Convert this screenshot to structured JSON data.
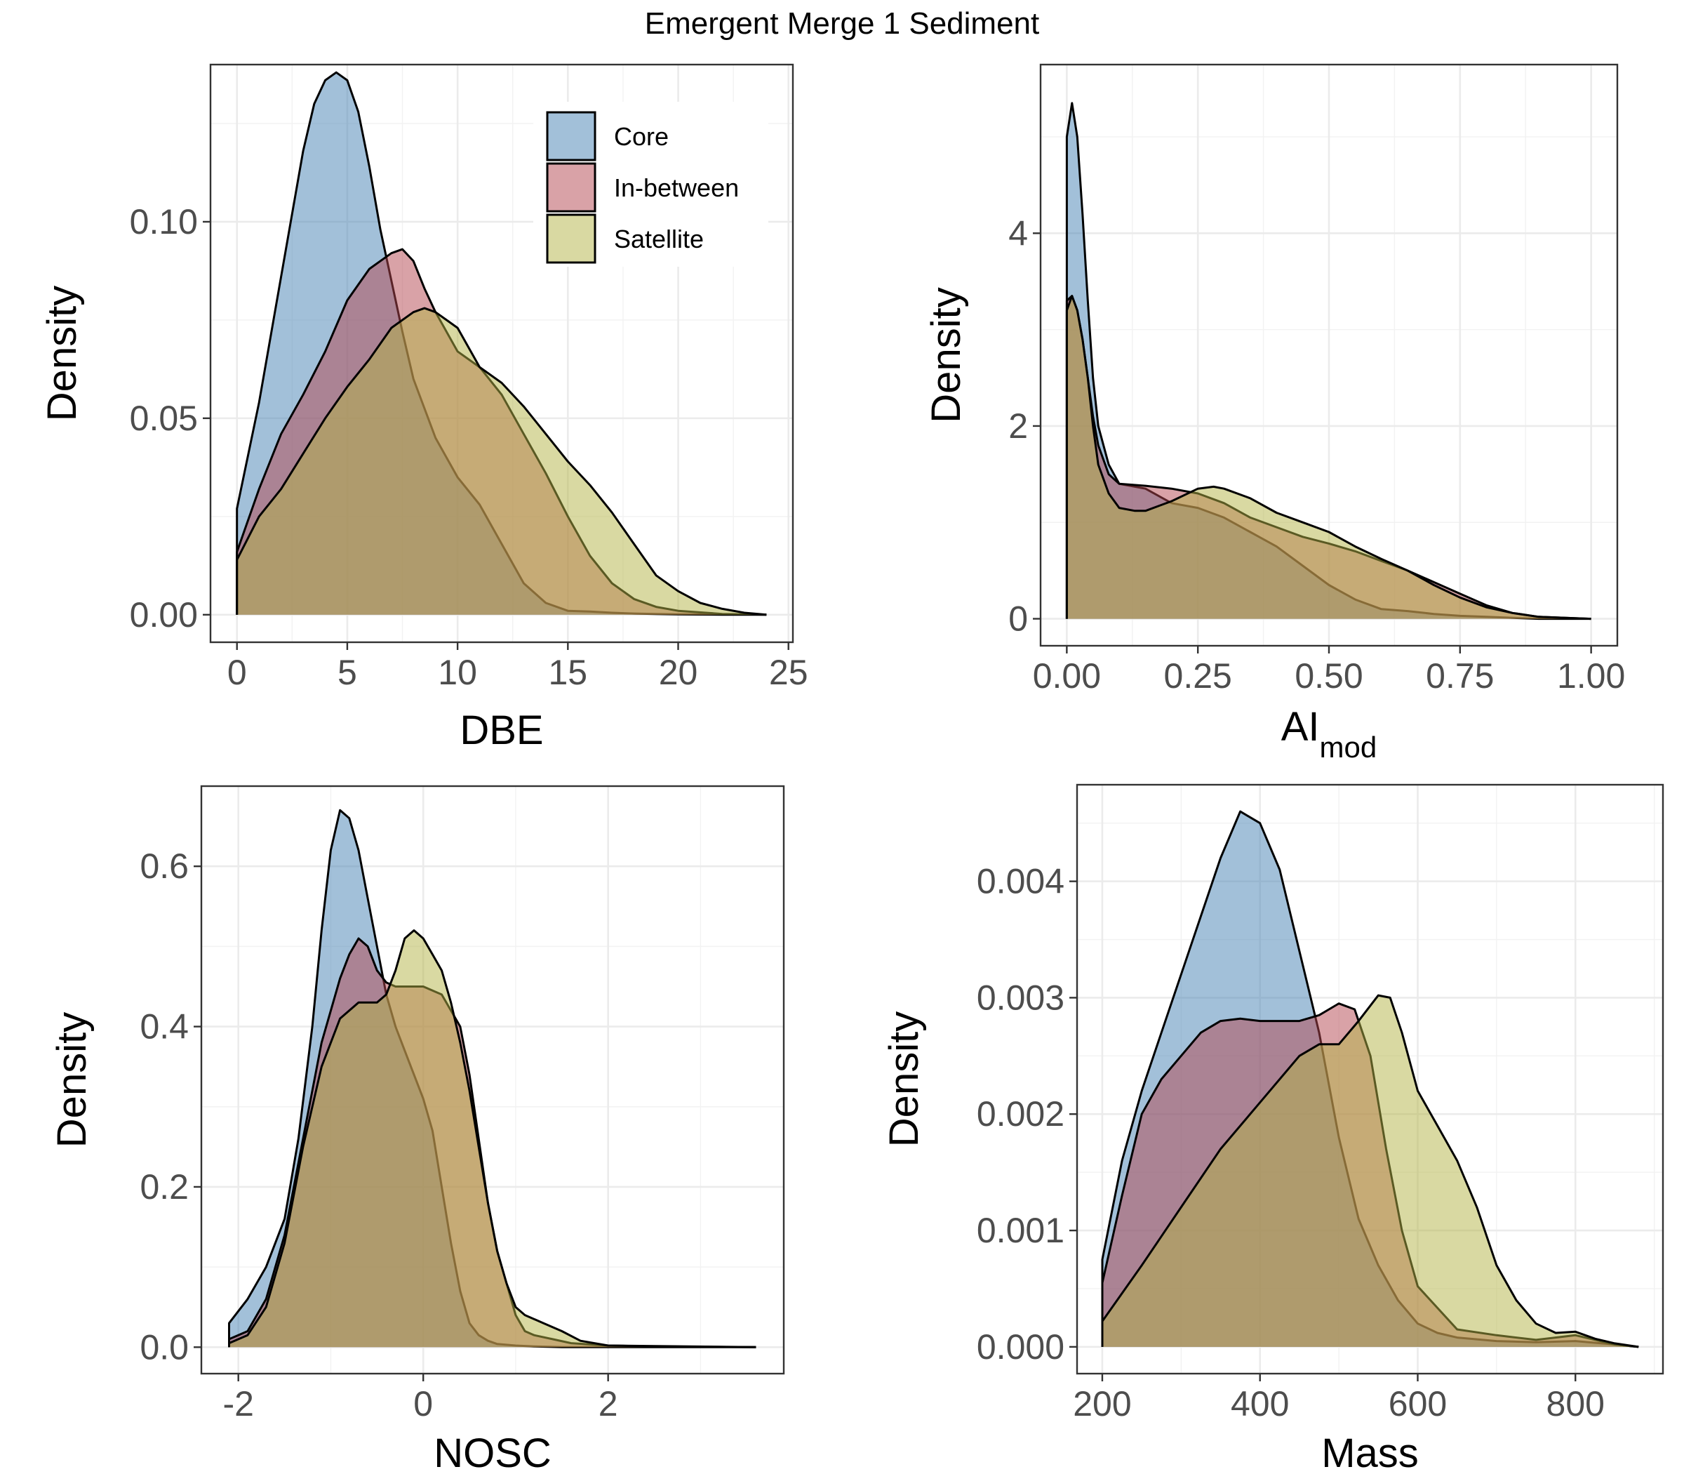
{
  "title": "Emergent Merge 1 Sediment",
  "colors": {
    "Core": "#4682b4",
    "In-between": "#b44650",
    "Satellite": "#b4b446"
  },
  "legend": {
    "placement": "top-right inside first panel",
    "entries": [
      "Core",
      "In-between",
      "Satellite"
    ]
  },
  "chart_data": [
    {
      "type": "area",
      "id": "dbe",
      "xlabel": "DBE",
      "ylabel": "Density",
      "xlim": [
        -1.2,
        25.2
      ],
      "ylim": [
        -0.007,
        0.14
      ],
      "xticks": [
        0,
        5,
        10,
        15,
        20,
        25
      ],
      "xtick_labels": [
        "0",
        "5",
        "10",
        "15",
        "20",
        "25"
      ],
      "yticks": [
        0.0,
        0.05,
        0.1
      ],
      "ytick_labels": [
        "0.00",
        "0.05",
        "0.10"
      ],
      "grid": true,
      "series": [
        {
          "name": "Core",
          "x": [
            0,
            1,
            2,
            3,
            3.5,
            4,
            4.5,
            5,
            5.5,
            6,
            6.5,
            7,
            7.5,
            8,
            9,
            10,
            11,
            12,
            13,
            14,
            15,
            16,
            17,
            18,
            19,
            20,
            22,
            24
          ],
          "y": [
            0.027,
            0.054,
            0.086,
            0.118,
            0.13,
            0.136,
            0.138,
            0.136,
            0.128,
            0.114,
            0.098,
            0.085,
            0.072,
            0.06,
            0.045,
            0.035,
            0.028,
            0.018,
            0.008,
            0.003,
            0.001,
            0.0008,
            0.0005,
            0.0003,
            0.0002,
            0.0001,
            0.0,
            0.0
          ]
        },
        {
          "name": "In-between",
          "x": [
            0,
            1,
            2,
            3,
            4,
            5,
            6,
            7,
            7.5,
            8,
            8.5,
            9,
            10,
            11,
            12,
            13,
            14,
            15,
            16,
            17,
            18,
            19,
            20,
            22,
            24
          ],
          "y": [
            0.016,
            0.032,
            0.046,
            0.056,
            0.067,
            0.08,
            0.088,
            0.092,
            0.093,
            0.09,
            0.083,
            0.077,
            0.067,
            0.063,
            0.056,
            0.046,
            0.036,
            0.025,
            0.015,
            0.008,
            0.004,
            0.002,
            0.001,
            0.0002,
            0.0
          ]
        },
        {
          "name": "Satellite",
          "x": [
            0,
            1,
            2,
            3,
            4,
            5,
            6,
            7,
            8,
            8.5,
            9,
            10,
            11,
            12,
            13,
            14,
            15,
            16,
            17,
            18,
            19,
            20,
            21,
            22,
            23,
            24
          ],
          "y": [
            0.014,
            0.025,
            0.032,
            0.041,
            0.05,
            0.058,
            0.065,
            0.073,
            0.077,
            0.078,
            0.077,
            0.073,
            0.063,
            0.059,
            0.053,
            0.046,
            0.039,
            0.033,
            0.026,
            0.018,
            0.01,
            0.006,
            0.003,
            0.0015,
            0.0005,
            0.0
          ]
        }
      ]
    },
    {
      "type": "area",
      "id": "aimod",
      "xlabel": "AI",
      "xlabel_sub": "mod",
      "ylabel": "Density",
      "xlim": [
        -0.05,
        1.05
      ],
      "ylim": [
        -0.28,
        5.75
      ],
      "xticks": [
        0,
        0.25,
        0.5,
        0.75,
        1.0
      ],
      "xtick_labels": [
        "0.00",
        "0.25",
        "0.50",
        "0.75",
        "1.00"
      ],
      "yticks": [
        0,
        2,
        4
      ],
      "ytick_labels": [
        "0",
        "2",
        "4"
      ],
      "grid": true,
      "series": [
        {
          "name": "Core",
          "x": [
            0,
            0.01,
            0.02,
            0.03,
            0.04,
            0.05,
            0.06,
            0.08,
            0.1,
            0.15,
            0.2,
            0.25,
            0.3,
            0.35,
            0.4,
            0.45,
            0.5,
            0.55,
            0.6,
            0.65,
            0.7,
            0.75,
            0.8,
            0.9,
            1.0
          ],
          "y": [
            5.0,
            5.35,
            5.0,
            4.2,
            3.3,
            2.5,
            2.0,
            1.6,
            1.4,
            1.35,
            1.2,
            1.15,
            1.05,
            0.9,
            0.75,
            0.55,
            0.35,
            0.2,
            0.1,
            0.08,
            0.05,
            0.03,
            0.02,
            0.0,
            0.0
          ]
        },
        {
          "name": "In-between",
          "x": [
            0,
            0.01,
            0.02,
            0.03,
            0.04,
            0.05,
            0.06,
            0.08,
            0.1,
            0.15,
            0.2,
            0.25,
            0.3,
            0.35,
            0.4,
            0.45,
            0.5,
            0.55,
            0.6,
            0.65,
            0.7,
            0.75,
            0.8,
            0.85,
            0.9,
            1.0
          ],
          "y": [
            3.3,
            3.35,
            3.2,
            2.9,
            2.5,
            2.1,
            1.8,
            1.5,
            1.4,
            1.38,
            1.35,
            1.3,
            1.2,
            1.05,
            0.95,
            0.85,
            0.78,
            0.7,
            0.6,
            0.5,
            0.38,
            0.26,
            0.14,
            0.06,
            0.02,
            0.0
          ]
        },
        {
          "name": "Satellite",
          "x": [
            0,
            0.01,
            0.02,
            0.03,
            0.04,
            0.05,
            0.06,
            0.08,
            0.1,
            0.13,
            0.15,
            0.2,
            0.25,
            0.28,
            0.3,
            0.35,
            0.4,
            0.45,
            0.5,
            0.55,
            0.6,
            0.65,
            0.7,
            0.75,
            0.8,
            0.85,
            0.9,
            0.95,
            1.0
          ],
          "y": [
            3.2,
            3.35,
            3.2,
            2.9,
            2.5,
            2.0,
            1.6,
            1.3,
            1.15,
            1.12,
            1.12,
            1.22,
            1.35,
            1.37,
            1.35,
            1.25,
            1.1,
            1.0,
            0.9,
            0.75,
            0.62,
            0.5,
            0.35,
            0.22,
            0.12,
            0.06,
            0.02,
            0.01,
            0.0
          ]
        }
      ]
    },
    {
      "type": "area",
      "id": "nosc",
      "xlabel": "NOSC",
      "ylabel": "Density",
      "xlim": [
        -2.4,
        3.9
      ],
      "ylim": [
        -0.033,
        0.7
      ],
      "xticks": [
        -2,
        0,
        2
      ],
      "xtick_labels": [
        "-2",
        "0",
        "2"
      ],
      "yticks": [
        0,
        0.2,
        0.4,
        0.6
      ],
      "ytick_labels": [
        "0.0",
        "0.2",
        "0.4",
        "0.6"
      ],
      "grid": true,
      "series": [
        {
          "name": "Core",
          "x": [
            -2.1,
            -1.9,
            -1.7,
            -1.5,
            -1.35,
            -1.2,
            -1.1,
            -1.0,
            -0.9,
            -0.8,
            -0.7,
            -0.6,
            -0.5,
            -0.4,
            -0.3,
            -0.2,
            -0.1,
            0.0,
            0.1,
            0.2,
            0.3,
            0.4,
            0.5,
            0.6,
            0.7,
            0.8,
            1.0,
            1.2,
            1.5,
            2.0,
            3.6
          ],
          "y": [
            0.03,
            0.06,
            0.1,
            0.16,
            0.26,
            0.4,
            0.52,
            0.62,
            0.67,
            0.66,
            0.62,
            0.56,
            0.5,
            0.44,
            0.4,
            0.37,
            0.34,
            0.31,
            0.27,
            0.2,
            0.13,
            0.07,
            0.03,
            0.015,
            0.008,
            0.004,
            0.002,
            0.001,
            0.0,
            0.0,
            0.0
          ]
        },
        {
          "name": "In-between",
          "x": [
            -2.1,
            -1.9,
            -1.7,
            -1.5,
            -1.3,
            -1.1,
            -0.9,
            -0.8,
            -0.7,
            -0.6,
            -0.5,
            -0.4,
            -0.3,
            -0.2,
            -0.1,
            0.0,
            0.2,
            0.4,
            0.5,
            0.6,
            0.7,
            0.8,
            0.9,
            1.0,
            1.1,
            1.2,
            1.4,
            1.6,
            2.0,
            3.6
          ],
          "y": [
            0.01,
            0.02,
            0.06,
            0.14,
            0.26,
            0.38,
            0.46,
            0.49,
            0.51,
            0.5,
            0.47,
            0.455,
            0.45,
            0.45,
            0.45,
            0.45,
            0.44,
            0.4,
            0.34,
            0.26,
            0.18,
            0.12,
            0.08,
            0.04,
            0.02,
            0.015,
            0.01,
            0.005,
            0.002,
            0.0
          ]
        },
        {
          "name": "Satellite",
          "x": [
            -2.1,
            -1.9,
            -1.7,
            -1.5,
            -1.3,
            -1.1,
            -0.9,
            -0.7,
            -0.5,
            -0.4,
            -0.3,
            -0.2,
            -0.1,
            0.0,
            0.1,
            0.2,
            0.3,
            0.4,
            0.5,
            0.6,
            0.7,
            0.8,
            0.9,
            1.0,
            1.1,
            1.3,
            1.5,
            1.7,
            2.0,
            2.5,
            3.6
          ],
          "y": [
            0.005,
            0.015,
            0.05,
            0.13,
            0.25,
            0.35,
            0.41,
            0.43,
            0.43,
            0.44,
            0.47,
            0.51,
            0.52,
            0.51,
            0.49,
            0.47,
            0.43,
            0.38,
            0.32,
            0.25,
            0.18,
            0.12,
            0.08,
            0.05,
            0.04,
            0.03,
            0.02,
            0.008,
            0.002,
            0.001,
            0.0
          ]
        }
      ]
    },
    {
      "type": "area",
      "id": "mass",
      "xlabel": "Mass",
      "ylabel": "Density",
      "xlim": [
        168,
        911
      ],
      "ylim": [
        -0.00023,
        0.00483
      ],
      "xticks": [
        200,
        400,
        600,
        800
      ],
      "xtick_labels": [
        "200",
        "400",
        "600",
        "800"
      ],
      "yticks": [
        0,
        0.001,
        0.002,
        0.003,
        0.004
      ],
      "ytick_labels": [
        "0.000",
        "0.001",
        "0.002",
        "0.003",
        "0.004"
      ],
      "grid": true,
      "series": [
        {
          "name": "Core",
          "x": [
            200,
            225,
            250,
            275,
            300,
            325,
            350,
            375,
            400,
            425,
            450,
            475,
            500,
            525,
            550,
            575,
            600,
            625,
            650,
            700,
            750,
            800,
            850,
            880
          ],
          "y": [
            0.00075,
            0.0016,
            0.0022,
            0.0027,
            0.0032,
            0.0037,
            0.0042,
            0.0046,
            0.0045,
            0.0041,
            0.0034,
            0.0027,
            0.0018,
            0.0011,
            0.0007,
            0.0004,
            0.0002,
            0.00012,
            8e-05,
            5e-05,
            4e-05,
            5e-05,
            2e-05,
            0.0
          ]
        },
        {
          "name": "In-between",
          "x": [
            200,
            225,
            250,
            275,
            300,
            325,
            350,
            375,
            400,
            425,
            450,
            475,
            500,
            520,
            540,
            560,
            580,
            600,
            650,
            700,
            750,
            800,
            850,
            880
          ],
          "y": [
            0.00055,
            0.0013,
            0.002,
            0.0023,
            0.0025,
            0.0027,
            0.0028,
            0.00282,
            0.0028,
            0.0028,
            0.0028,
            0.00285,
            0.00295,
            0.0029,
            0.0025,
            0.0017,
            0.001,
            0.00052,
            0.00015,
            0.0001,
            6e-05,
            0.0001,
            2e-05,
            0.0
          ]
        },
        {
          "name": "Satellite",
          "x": [
            200,
            250,
            300,
            350,
            400,
            450,
            475,
            500,
            525,
            550,
            565,
            580,
            600,
            625,
            650,
            675,
            700,
            725,
            750,
            775,
            800,
            825,
            850,
            880
          ],
          "y": [
            0.00022,
            0.0007,
            0.0012,
            0.0017,
            0.0021,
            0.0025,
            0.0026,
            0.0026,
            0.0028,
            0.00302,
            0.003,
            0.0027,
            0.0022,
            0.0019,
            0.0016,
            0.0012,
            0.0007,
            0.0004,
            0.0002,
            0.00012,
            0.00013,
            7e-05,
            3e-05,
            0.0
          ]
        }
      ]
    }
  ]
}
